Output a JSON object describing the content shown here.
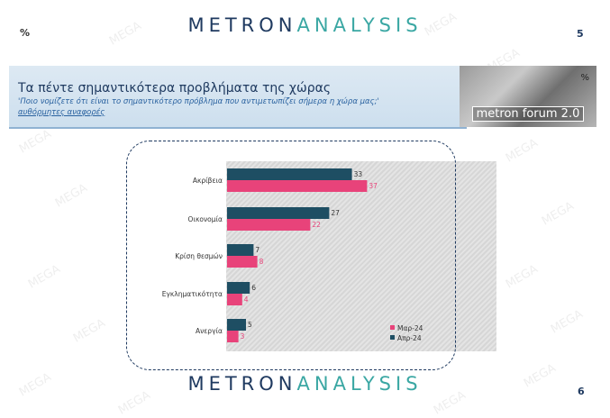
{
  "header": {
    "percent_sign": "%",
    "page_number": "5"
  },
  "footer": {
    "page_number": "6"
  },
  "logo": {
    "part1": "METRON",
    "part2": "ANALYSIS"
  },
  "banner": {
    "title": "Τα πέντε σημαντικότερα προβλήματα της χώρας",
    "question": "'Ποιο νομίζετε ότι είναι το σημαντικότερο πρόβλημα που αντιμετωπίζει σήμερα η χώρα μας;'",
    "note": "αυθόρμητες αναφορές"
  },
  "forum_badge": {
    "label": "metron forum 2.0",
    "percent_sign": "%"
  },
  "watermark_text": "MEGA",
  "colors": {
    "series_mar": "#e8437a",
    "series_apr": "#1e4e63",
    "frame": "#1f3a60",
    "logo_accent": "#3aa7a3"
  },
  "chart_data": {
    "type": "bar",
    "orientation": "horizontal",
    "categories": [
      "Ακρίβεια",
      "Οικονομία",
      "Κρίση θεσμών",
      "Εγκληματικότητα",
      "Ανεργία"
    ],
    "series": [
      {
        "name": "Απρ-24",
        "values": [
          33,
          27,
          7,
          6,
          5
        ],
        "color": "#1e4e63"
      },
      {
        "name": "Μαρ-24",
        "values": [
          37,
          22,
          8,
          4,
          3
        ],
        "color": "#e8437a"
      }
    ],
    "legend": {
      "position": "bottom-right",
      "entries": [
        "Μαρ-24",
        "Απρ-24"
      ]
    },
    "grid": false
  }
}
